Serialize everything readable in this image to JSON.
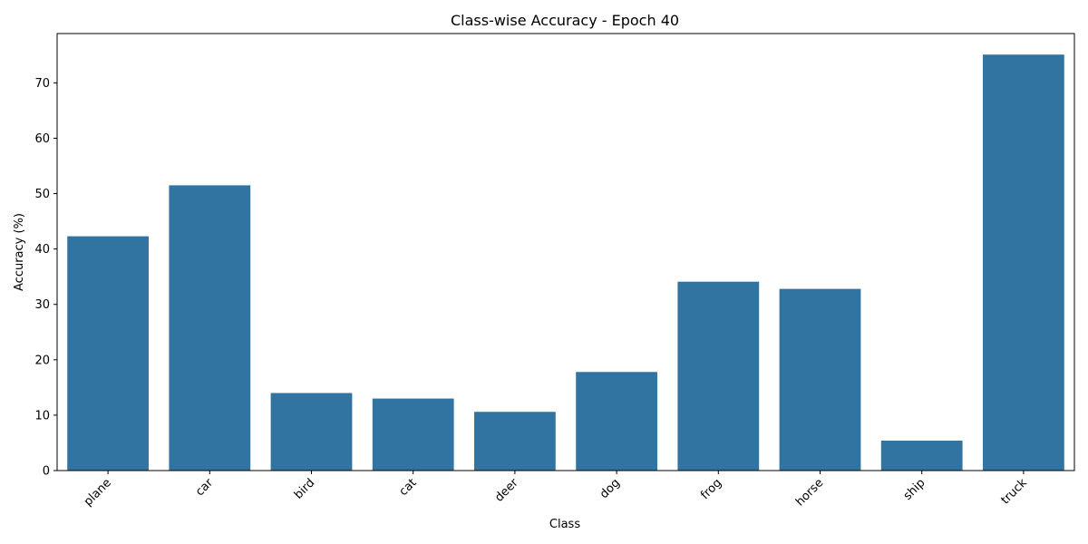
{
  "chart_data": {
    "type": "bar",
    "title": "Class-wise Accuracy - Epoch 40",
    "xlabel": "Class",
    "ylabel": "Accuracy (%)",
    "categories": [
      "plane",
      "car",
      "bird",
      "cat",
      "deer",
      "dog",
      "frog",
      "horse",
      "ship",
      "truck"
    ],
    "values": [
      42.3,
      51.5,
      14.0,
      13.0,
      10.6,
      17.8,
      34.1,
      32.8,
      5.4,
      75.1
    ],
    "ylim": [
      0,
      78.9
    ],
    "yticks": [
      0,
      10,
      20,
      30,
      40,
      50,
      60,
      70
    ],
    "bar_color": "#3274a1",
    "grid": false,
    "legend": "none"
  }
}
